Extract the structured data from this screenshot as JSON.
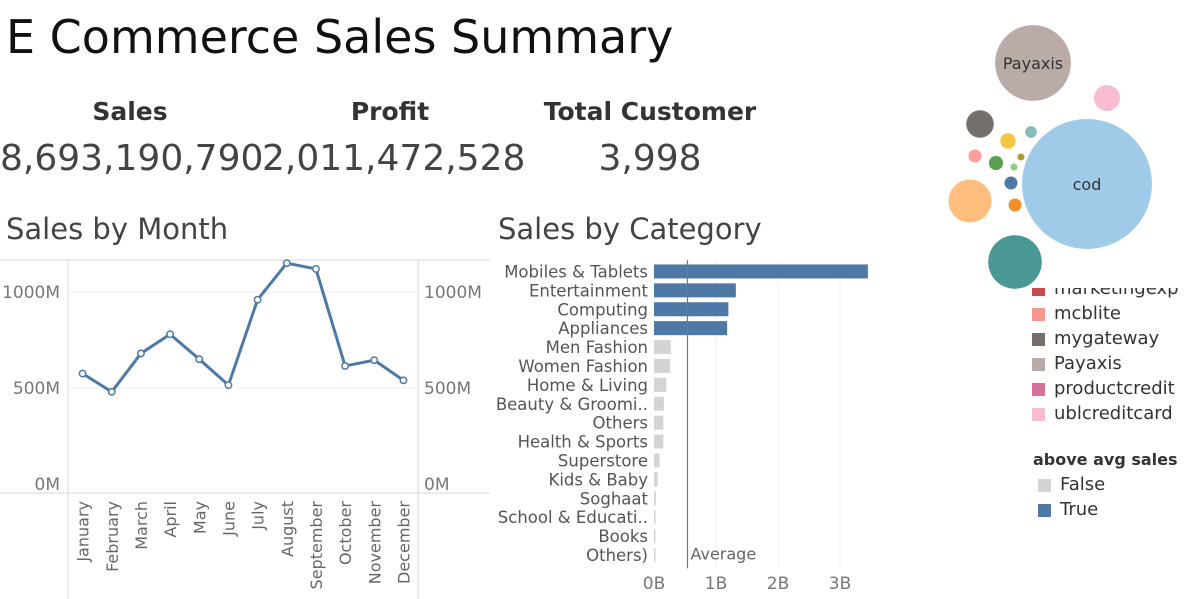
{
  "dashboard": {
    "title": "E Commerce Sales Summary"
  },
  "kpis": [
    {
      "label": "Sales",
      "value": "8,693,190,790"
    },
    {
      "label": "Profit",
      "value": "2,011,472,528"
    },
    {
      "label": "Total Customer",
      "value": "3,998"
    }
  ],
  "payment_legend": {
    "items": [
      {
        "label": "marketingexp",
        "color": "#c94a4a"
      },
      {
        "label": "mcblite",
        "color": "#f4978e"
      },
      {
        "label": "mygateway",
        "color": "#76706c"
      },
      {
        "label": "Payaxis",
        "color": "#b9aca6"
      },
      {
        "label": "productcredit",
        "color": "#d3729a"
      },
      {
        "label": "ublcreditcard",
        "color": "#f9bcd3"
      }
    ]
  },
  "avg_legend": {
    "title": "above avg sales",
    "items": [
      {
        "label": "False",
        "color": "#d4d4d4"
      },
      {
        "label": "True",
        "color": "#4e79a7"
      }
    ]
  },
  "chart_data": [
    {
      "type": "line",
      "title": "Sales by Month",
      "categories": [
        "January",
        "February",
        "March",
        "April",
        "May",
        "June",
        "July",
        "August",
        "September",
        "October",
        "November",
        "December"
      ],
      "values": [
        575,
        480,
        680,
        780,
        650,
        515,
        960,
        1150,
        1120,
        615,
        645,
        540
      ],
      "y_unit": "M",
      "yticks": [
        "0M",
        "500M",
        "1000M"
      ],
      "ylim": [
        0,
        1250
      ],
      "color": "#4e79a7",
      "grid": true
    },
    {
      "type": "bar",
      "orientation": "horizontal",
      "title": "Sales by Category",
      "categories": [
        "Mobiles & Tablets",
        "Entertainment",
        "Computing",
        "Appliances",
        "Men Fashion",
        "Women Fashion",
        "Home & Living",
        "Beauty & Groomi..",
        "Others",
        "Health & Sports",
        "Superstore",
        "Kids & Baby",
        "Soghaat",
        "School & Educati..",
        "Books",
        "Others)"
      ],
      "values": [
        3.45,
        1.32,
        1.2,
        1.18,
        0.27,
        0.26,
        0.2,
        0.16,
        0.15,
        0.15,
        0.09,
        0.06,
        0.03,
        0.02,
        0.01,
        0.005
      ],
      "above_avg": [
        true,
        true,
        true,
        true,
        false,
        false,
        false,
        false,
        false,
        false,
        false,
        false,
        false,
        false,
        false,
        false
      ],
      "x_unit": "B",
      "xticks": [
        "0B",
        "1B",
        "2B",
        "3B"
      ],
      "xlim": [
        0,
        3.6
      ],
      "average": 0.54,
      "average_label": "Average"
    },
    {
      "type": "bubble",
      "title": "",
      "bubbles": [
        {
          "label": "Payaxis",
          "color": "#b9aca6",
          "value": 34
        },
        {
          "label": "cod",
          "color": "#a0cbe8",
          "value": 100
        },
        {
          "label": "",
          "color": "#f9bcd3",
          "value": 4
        },
        {
          "label": "",
          "color": "#76706c",
          "value": 4.5
        },
        {
          "label": "",
          "color": "#f4c542",
          "value": 1.4
        },
        {
          "label": "",
          "color": "#86bcb6",
          "value": 0.8
        },
        {
          "label": "",
          "color": "#ff9d9a",
          "value": 1
        },
        {
          "label": "",
          "color": "#59a14f",
          "value": 1.2
        },
        {
          "label": "",
          "color": "#b6992d",
          "value": 0.3
        },
        {
          "label": "",
          "color": "#8cd17d",
          "value": 0.3
        },
        {
          "label": "",
          "color": "#4e79a7",
          "value": 1
        },
        {
          "label": "",
          "color": "#ffbe7d",
          "value": 11
        },
        {
          "label": "",
          "color": "#f28e2b",
          "value": 1
        },
        {
          "label": "",
          "color": "#499894",
          "value": 17
        }
      ]
    }
  ]
}
